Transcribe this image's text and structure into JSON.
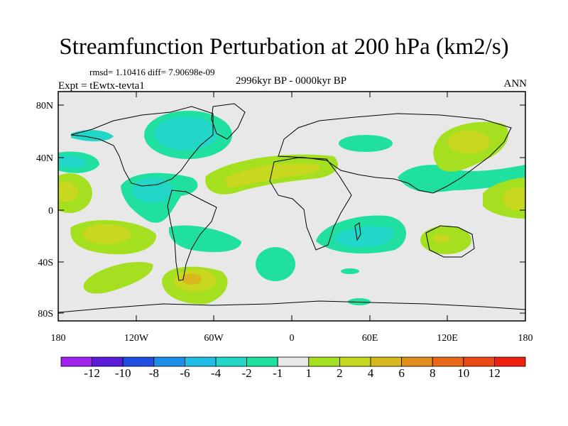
{
  "figure": {
    "title": "Streamfunction Perturbation at 200 hPa (km2/s)",
    "stats": "rmsd= 1.10416 diff= 7.90698e-09",
    "period": "2996kyr BP - 0000kyr BP",
    "experiment": "Expt = tEwtx-tevta1",
    "season": "ANN"
  },
  "map": {
    "projection": "cylindrical-equidistant",
    "lat_labels": [
      "80N",
      "40N",
      "0",
      "40S",
      "80S"
    ],
    "lon_labels": [
      "180",
      "120W",
      "60W",
      "0",
      "60E",
      "120E",
      "180"
    ],
    "background_color": "#e8e8e8"
  },
  "colorbar": {
    "levels": [
      "-12",
      "-10",
      "-8",
      "-6",
      "-4",
      "-2",
      "-1",
      "1",
      "2",
      "4",
      "6",
      "8",
      "10",
      "12"
    ],
    "colors": [
      "#a020f0",
      "#5a1cd8",
      "#1f4fe0",
      "#1e8fe6",
      "#21bfe6",
      "#22d6c8",
      "#1fe0a0",
      "#e8e8e8",
      "#a5e020",
      "#c8d81e",
      "#d8b81c",
      "#e0901a",
      "#e86818",
      "#ec4816",
      "#f02010"
    ]
  }
}
